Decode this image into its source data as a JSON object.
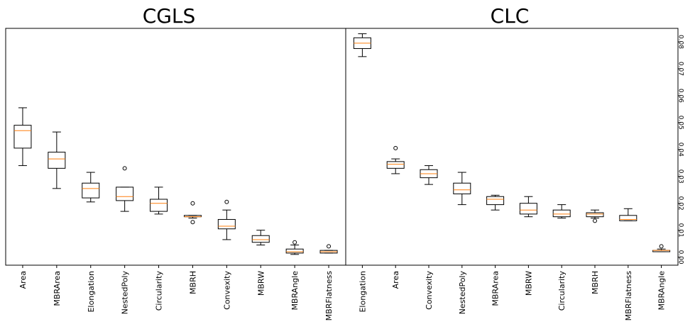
{
  "chart_data": [
    {
      "type": "box",
      "title": "CGLS",
      "ylim": [
        -0.003,
        0.085
      ],
      "categories": [
        "Area",
        "MBRArea",
        "Elongation",
        "NestedPoly",
        "Circularity",
        "MBRH",
        "Convexity",
        "MBRW",
        "MBRAngle",
        "MBRFlatness"
      ],
      "boxes": [
        {
          "whislo": 0.034,
          "q1": 0.0405,
          "med": 0.047,
          "q3": 0.049,
          "whishi": 0.0555,
          "fliers": []
        },
        {
          "whislo": 0.0255,
          "q1": 0.033,
          "med": 0.0365,
          "q3": 0.039,
          "whishi": 0.0465,
          "fliers": []
        },
        {
          "whislo": 0.0205,
          "q1": 0.022,
          "med": 0.0255,
          "q3": 0.0275,
          "whishi": 0.0315,
          "fliers": []
        },
        {
          "whislo": 0.017,
          "q1": 0.021,
          "med": 0.0225,
          "q3": 0.026,
          "whishi": 0.026,
          "fliers": [
            0.033
          ]
        },
        {
          "whislo": 0.016,
          "q1": 0.017,
          "med": 0.02,
          "q3": 0.0215,
          "whishi": 0.026,
          "fliers": []
        },
        {
          "whislo": 0.0145,
          "q1": 0.015,
          "med": 0.015,
          "q3": 0.0155,
          "whishi": 0.0155,
          "fliers": [
            0.02,
            0.013
          ]
        },
        {
          "whislo": 0.0065,
          "q1": 0.0105,
          "med": 0.0115,
          "q3": 0.014,
          "whishi": 0.0175,
          "fliers": [
            0.0205
          ]
        },
        {
          "whislo": 0.0045,
          "q1": 0.0055,
          "med": 0.0065,
          "q3": 0.008,
          "whishi": 0.01,
          "fliers": []
        },
        {
          "whislo": 0.001,
          "q1": 0.0015,
          "med": 0.002,
          "q3": 0.003,
          "whishi": 0.0045,
          "fliers": [
            0.0055
          ]
        },
        {
          "whislo": 0.0015,
          "q1": 0.0015,
          "med": 0.002,
          "q3": 0.0025,
          "whishi": 0.0025,
          "fliers": [
            0.004
          ]
        }
      ]
    },
    {
      "type": "box",
      "title": "CLC",
      "ylim": [
        -0.003,
        0.085
      ],
      "yticks": [
        0.0,
        0.01,
        0.02,
        0.03,
        0.04,
        0.05,
        0.06,
        0.07,
        0.08
      ],
      "ytick_labels": [
        "0.00",
        "0.01",
        "0.02",
        "0.03",
        "0.04",
        "0.05",
        "0.06",
        "0.07",
        "0.08"
      ],
      "categories": [
        "Elongation",
        "Area",
        "Convexity",
        "NestedPoly",
        "MBRArea",
        "MBRW",
        "Circularity",
        "MBRH",
        "MBRFlatness",
        "MBRAngle"
      ],
      "boxes": [
        {
          "whislo": 0.0745,
          "q1": 0.0775,
          "med": 0.0795,
          "q3": 0.0815,
          "whishi": 0.083,
          "fliers": []
        },
        {
          "whislo": 0.031,
          "q1": 0.033,
          "med": 0.0345,
          "q3": 0.0355,
          "whishi": 0.0365,
          "fliers": [
            0.0405
          ]
        },
        {
          "whislo": 0.027,
          "q1": 0.0295,
          "med": 0.031,
          "q3": 0.0325,
          "whishi": 0.034,
          "fliers": []
        },
        {
          "whislo": 0.0195,
          "q1": 0.0235,
          "med": 0.025,
          "q3": 0.0275,
          "whishi": 0.0315,
          "fliers": []
        },
        {
          "whislo": 0.0175,
          "q1": 0.0195,
          "med": 0.0215,
          "q3": 0.0225,
          "whishi": 0.023,
          "fliers": []
        },
        {
          "whislo": 0.015,
          "q1": 0.016,
          "med": 0.0175,
          "q3": 0.02,
          "whishi": 0.0225,
          "fliers": []
        },
        {
          "whislo": 0.0145,
          "q1": 0.015,
          "med": 0.016,
          "q3": 0.0175,
          "whishi": 0.0195,
          "fliers": []
        },
        {
          "whislo": 0.0145,
          "q1": 0.015,
          "med": 0.016,
          "q3": 0.0165,
          "whishi": 0.0175,
          "fliers": [
            0.0135
          ]
        },
        {
          "whislo": 0.0135,
          "q1": 0.0135,
          "med": 0.014,
          "q3": 0.0155,
          "whishi": 0.018,
          "fliers": []
        },
        {
          "whislo": 0.002,
          "q1": 0.002,
          "med": 0.0025,
          "q3": 0.0025,
          "whishi": 0.003,
          "fliers": [
            0.004
          ]
        }
      ]
    }
  ],
  "colors": {
    "box": "#000000",
    "median": "#ff7f0e",
    "axes": "#000000",
    "background": "#ffffff"
  }
}
